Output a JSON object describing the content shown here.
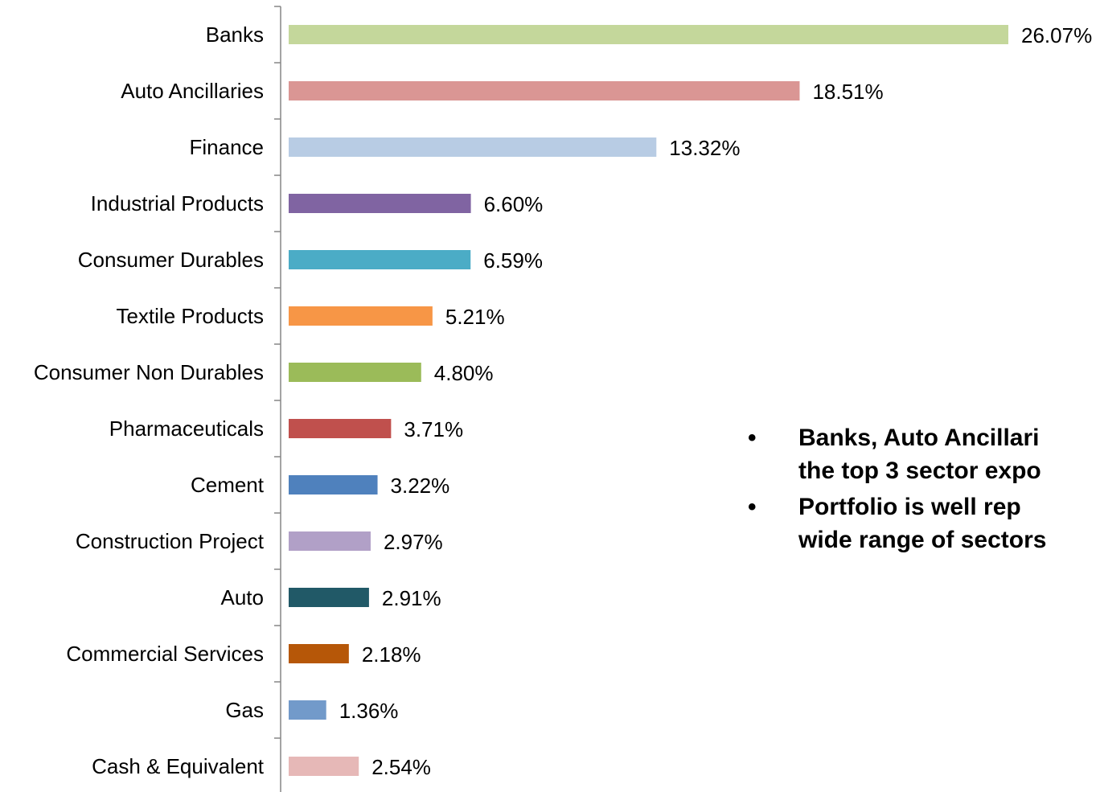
{
  "chart_data": {
    "type": "bar",
    "orientation": "horizontal",
    "categories": [
      "Banks",
      "Auto Ancillaries",
      "Finance",
      "Industrial Products",
      "Consumer Durables",
      "Textile Products",
      "Consumer Non Durables",
      "Pharmaceuticals",
      "Cement",
      "Construction Project",
      "Auto",
      "Commercial Services",
      "Gas",
      "Cash & Equivalent"
    ],
    "values": [
      26.07,
      18.51,
      13.32,
      6.6,
      6.59,
      5.21,
      4.8,
      3.71,
      3.22,
      2.97,
      2.91,
      2.18,
      1.36,
      2.54
    ],
    "value_labels": [
      "26.07%",
      "18.51%",
      "13.32%",
      "6.60%",
      "6.59%",
      "5.21%",
      "4.80%",
      "3.71%",
      "3.22%",
      "2.97%",
      "2.91%",
      "2.18%",
      "1.36%",
      "2.54%"
    ],
    "colors": [
      "#C4D79B",
      "#DA9694",
      "#B8CCE4",
      "#8064A2",
      "#4BACC6",
      "#F79646",
      "#9BBB59",
      "#C0504D",
      "#4F81BD",
      "#B1A0C7",
      "#215967",
      "#B65708",
      "#729ACA",
      "#E6B8B7"
    ],
    "xlim": [
      0,
      26.07
    ],
    "grid": false,
    "legend": "none"
  },
  "notes": [
    {
      "lines": [
        "Banks, Auto Ancillari",
        "the top 3 sector expo"
      ]
    },
    {
      "lines": [
        "Portfolio is well rep",
        "wide range of sectors"
      ]
    }
  ]
}
